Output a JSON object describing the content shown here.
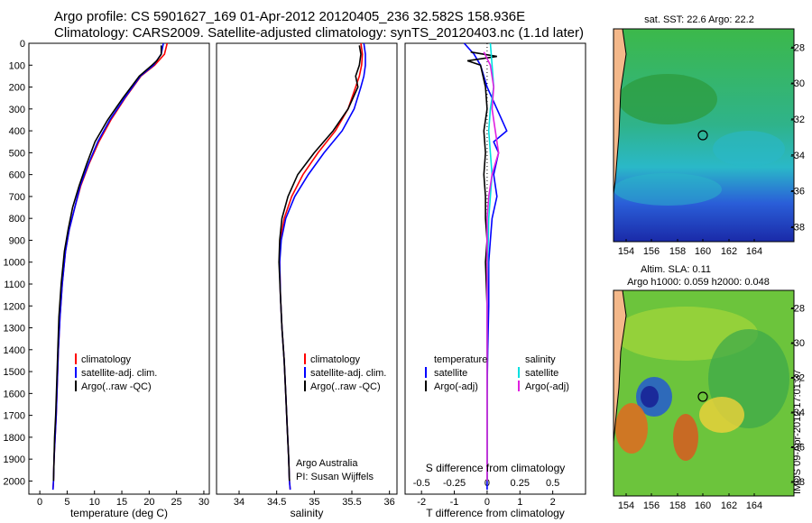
{
  "header": {
    "line1": "Argo profile: CS 5901627_169 01-Apr-2012 20120405_236 32.582S 158.936E",
    "line2": "Climatology: CARS2009. Satellite-adjusted climatology: synTS_20120403.nc (1.1d later)"
  },
  "depth_axis": {
    "ticks": [
      0,
      100,
      200,
      300,
      400,
      500,
      600,
      700,
      800,
      900,
      1000,
      1100,
      1200,
      1300,
      1400,
      1500,
      1600,
      1700,
      1800,
      1900,
      2000
    ],
    "range": [
      0,
      2060
    ]
  },
  "colors": {
    "climatology": "#ff0000",
    "satellite": "#0000ff",
    "argo": "#000000",
    "salinity_satellite": "#00e0e0",
    "salinity_argo": "#e020e0"
  },
  "panels": {
    "temperature": {
      "xlabel": "temperature (deg C)",
      "xlim": [
        -2,
        31
      ],
      "xticks": [
        "0",
        "5",
        "10",
        "15",
        "20",
        "25",
        "30"
      ],
      "xtick_values": [
        0,
        5,
        10,
        15,
        20,
        25,
        30
      ],
      "legend": [
        "climatology",
        "satellite-adj. clim.",
        "Argo(..raw -QC)"
      ]
    },
    "salinity": {
      "xlabel": "salinity",
      "xlim": [
        33.7,
        36.1
      ],
      "xticks": [
        "34",
        "34.5",
        "35",
        "35.5",
        "36"
      ],
      "xtick_values": [
        34,
        34.5,
        35,
        35.5,
        36
      ],
      "legend": [
        "climatology",
        "satellite-adj. clim.",
        "Argo(..raw -QC)"
      ],
      "note1": "Argo Australia",
      "note2": "PI: Susan Wijffels"
    },
    "difference": {
      "xlabel": "T difference from climatology",
      "xlim": [
        -2.5,
        3
      ],
      "t_ticks": [
        "-2",
        "-1",
        "0",
        "1",
        "2"
      ],
      "t_tick_values": [
        -2,
        -1,
        0,
        1,
        2
      ],
      "s_title": "S difference from climatology",
      "s_ticks": [
        "-0.5",
        "-0.25",
        "0",
        "0.25",
        "0.5"
      ],
      "s_tick_positions": [
        -2,
        -1,
        0,
        1,
        2
      ],
      "legend_temperature": "temperature",
      "legend_salinity": "salinity",
      "legend_t_satellite": "satellite",
      "legend_t_argo": "Argo(-adj)",
      "legend_s_satellite": "satellite",
      "legend_s_argo": "Argo(-adj)"
    }
  },
  "maps": {
    "sst": {
      "title": "sat. SST: 22.6 Argo: 22.2",
      "xticks": [
        "154",
        "156",
        "158",
        "160",
        "162",
        "164"
      ],
      "yticks": [
        "-28",
        "-30",
        "-32",
        "-34",
        "-36",
        "-38"
      ]
    },
    "sla": {
      "title1": "Altim. SLA: 0.11",
      "title2": "Argo h1000: 0.059 h2000: 0.048",
      "xticks": [
        "154",
        "156",
        "158",
        "160",
        "162",
        "164"
      ],
      "yticks": [
        "-28",
        "-30",
        "-32",
        "-34",
        "-36",
        "-38"
      ]
    },
    "credit": "IMOS 09-Apr-2012 17:01:37"
  },
  "chart_data": [
    {
      "type": "line",
      "xlabel": "temperature (deg C)",
      "ylabel": "",
      "xlim": [
        -2,
        31
      ],
      "ylim": [
        2060,
        0
      ],
      "series": [
        {
          "name": "climatology",
          "x": [
            23.3,
            22.8,
            21.0,
            18.5,
            15.6,
            13.0,
            10.8,
            9.0,
            7.5,
            6.4,
            5.4,
            4.7,
            4.1,
            3.7,
            3.4,
            3.2,
            3.0,
            2.8,
            2.6,
            2.5,
            2.4
          ],
          "y": [
            0,
            50,
            100,
            150,
            250,
            350,
            450,
            550,
            650,
            750,
            850,
            950,
            1100,
            1250,
            1400,
            1550,
            1700,
            1800,
            1900,
            2000,
            2040
          ]
        },
        {
          "name": "satellite-adj. clim.",
          "x": [
            22.6,
            22.2,
            20.8,
            18.4,
            15.5,
            12.8,
            10.6,
            8.9,
            7.4,
            6.4,
            5.4,
            4.7,
            4.1,
            3.7,
            3.4,
            3.2,
            3.0,
            2.8,
            2.6,
            2.5,
            2.4
          ],
          "y": [
            0,
            50,
            100,
            150,
            250,
            350,
            450,
            550,
            650,
            750,
            850,
            950,
            1100,
            1250,
            1400,
            1550,
            1700,
            1800,
            1900,
            2000,
            2040
          ]
        },
        {
          "name": "Argo(..raw -QC)",
          "x": [
            22.2,
            22.2,
            21.4,
            20.5,
            18.2,
            15.2,
            12.4,
            10.1,
            8.6,
            7.2,
            6.0,
            5.2,
            4.5,
            3.9,
            3.5,
            3.3,
            3.1,
            2.9,
            2.7,
            2.6,
            2.5
          ],
          "y": [
            10,
            50,
            80,
            100,
            150,
            250,
            350,
            450,
            550,
            650,
            750,
            850,
            950,
            1100,
            1250,
            1400,
            1550,
            1700,
            1800,
            1900,
            2000
          ]
        }
      ]
    },
    {
      "type": "line",
      "xlabel": "salinity",
      "ylabel": "",
      "xlim": [
        33.7,
        36.1
      ],
      "ylim": [
        2060,
        0
      ],
      "series": [
        {
          "name": "climatology",
          "x": [
            35.62,
            35.64,
            35.63,
            35.6,
            35.55,
            35.45,
            35.28,
            35.05,
            34.85,
            34.7,
            34.6,
            34.55,
            34.54,
            34.55,
            34.57,
            34.6,
            34.62,
            34.64,
            34.66,
            34.67,
            34.68
          ],
          "y": [
            0,
            50,
            100,
            150,
            200,
            300,
            400,
            500,
            600,
            700,
            800,
            900,
            1000,
            1150,
            1300,
            1450,
            1600,
            1750,
            1900,
            2000,
            2040
          ]
        },
        {
          "name": "satellite-adj. clim.",
          "x": [
            35.66,
            35.68,
            35.68,
            35.66,
            35.62,
            35.53,
            35.37,
            35.13,
            34.92,
            34.74,
            34.62,
            34.56,
            34.54,
            34.55,
            34.57,
            34.6,
            34.62,
            34.64,
            34.66,
            34.67,
            34.68
          ],
          "y": [
            0,
            50,
            100,
            150,
            200,
            300,
            400,
            500,
            600,
            700,
            800,
            900,
            1000,
            1150,
            1300,
            1450,
            1600,
            1750,
            1900,
            2000,
            2040
          ]
        },
        {
          "name": "Argo(..raw -QC)",
          "x": [
            35.6,
            35.62,
            35.6,
            35.55,
            35.58,
            35.45,
            35.25,
            35.0,
            34.78,
            34.65,
            34.57,
            34.54,
            34.53,
            34.55,
            34.57,
            34.6,
            34.62,
            34.64,
            34.66,
            34.67
          ],
          "y": [
            10,
            50,
            100,
            150,
            200,
            300,
            400,
            500,
            600,
            700,
            800,
            900,
            1000,
            1150,
            1300,
            1450,
            1600,
            1750,
            1900,
            2000
          ]
        }
      ]
    },
    {
      "type": "line",
      "xlabel": "T difference from climatology",
      "ylabel": "",
      "xlim": [
        -2.5,
        3
      ],
      "ylim": [
        2060,
        0
      ],
      "series": [
        {
          "name": "satellite",
          "x": [
            -0.7,
            -0.4,
            -0.2,
            0.0,
            0.3,
            0.6,
            0.2,
            0.35,
            0.2,
            0.3,
            0.15,
            0.1,
            0.05,
            0.05,
            0.02,
            0.0,
            0.0,
            0.0,
            0.0
          ],
          "y": [
            0,
            50,
            100,
            200,
            300,
            400,
            450,
            500,
            600,
            700,
            800,
            900,
            1000,
            1200,
            1400,
            1600,
            1800,
            1950,
            2040
          ]
        },
        {
          "name": "Argo(-adj)",
          "x": [
            -0.5,
            0.3,
            -0.6,
            -0.2,
            -0.05,
            0.0,
            -0.1,
            -0.05,
            -0.1,
            -0.05,
            -0.05,
            0.0,
            -0.05,
            0.0,
            0.0,
            0.0,
            0.0,
            0.0
          ],
          "y": [
            40,
            60,
            80,
            100,
            200,
            300,
            400,
            500,
            600,
            700,
            800,
            900,
            1000,
            1200,
            1400,
            1600,
            1800,
            2000
          ]
        },
        {
          "name": "salinity satellite",
          "x": [
            0.1,
            0.15,
            0.2,
            0.1,
            0.05,
            0.1,
            0.15,
            0.1,
            0.05,
            0.02,
            0.0,
            0.0,
            0.0,
            0.0
          ],
          "y": [
            0,
            100,
            200,
            300,
            400,
            500,
            600,
            700,
            800,
            1000,
            1200,
            1400,
            1600,
            2000
          ]
        },
        {
          "name": "salinity Argo(-adj)",
          "x": [
            -0.1,
            0.1,
            0.2,
            0.15,
            0.25,
            0.35,
            0.15,
            0.05,
            0.0,
            0.0,
            0.0,
            0.0,
            0.0
          ],
          "y": [
            40,
            100,
            200,
            300,
            400,
            500,
            600,
            700,
            800,
            1000,
            1200,
            1400,
            2000
          ]
        }
      ]
    }
  ]
}
